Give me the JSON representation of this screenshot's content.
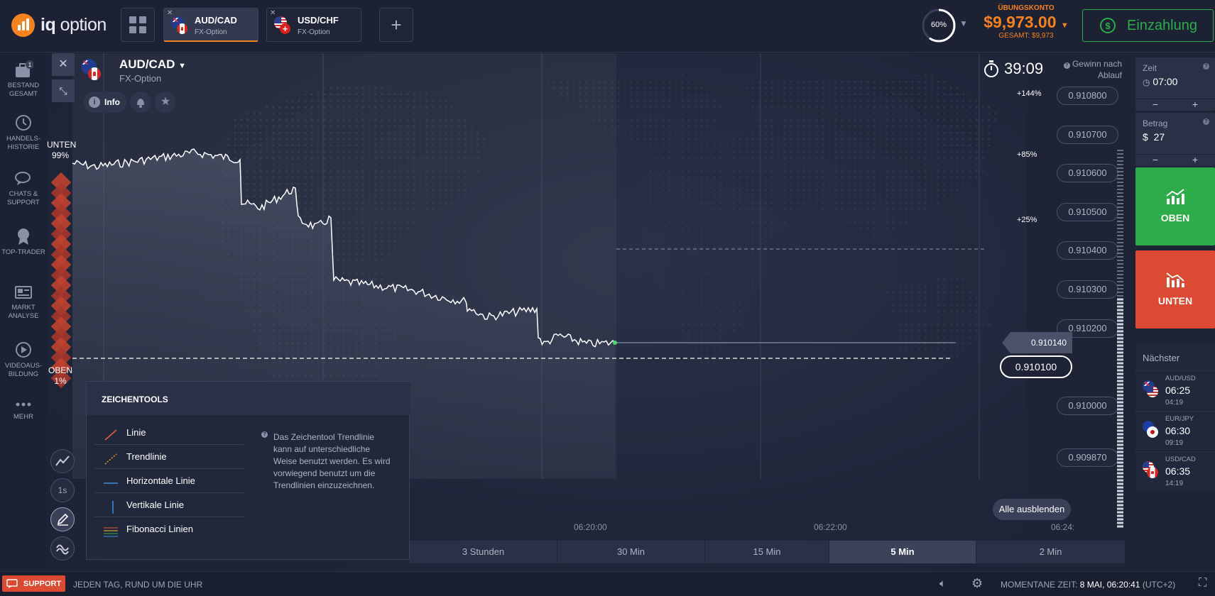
{
  "brand": {
    "name_bold": "iq",
    "name_rest": " option",
    "accent": "#f6811f"
  },
  "tabs": [
    {
      "pair": "AUD/CAD",
      "type": "FX-Option",
      "active": true
    },
    {
      "pair": "USD/CHF",
      "type": "FX-Option",
      "active": false
    }
  ],
  "account": {
    "gauge": "60%",
    "label": "ÜBUNGSKONTO",
    "balance": "$9,973.00",
    "total": "GESAMT: $9,973",
    "deposit": "Einzahlung"
  },
  "sidebar": [
    {
      "label": "BESTAND GESAMT",
      "badge": "1",
      "icon": "briefcase-icon"
    },
    {
      "label": "HANDELS-HISTORIE",
      "icon": "history-icon"
    },
    {
      "label": "CHATS & SUPPORT",
      "icon": "chat-icon"
    },
    {
      "label": "TOP-TRADER",
      "icon": "medal-icon"
    },
    {
      "label": "MARKT ANALYSE",
      "icon": "news-icon"
    },
    {
      "label": "VIDEOAUS-BILDUNG",
      "icon": "play-icon"
    },
    {
      "label": "MEHR",
      "icon": "more-icon"
    }
  ],
  "asset": {
    "pair": "AUD/CAD",
    "type": "FX-Option",
    "info": "Info"
  },
  "timer": {
    "value": "39:09",
    "profit_label": "Gewinn nach Ablauf"
  },
  "sentiment": {
    "down_label": "UNTEN",
    "down_pct": "99%",
    "up_label": "OBEN",
    "up_pct": "1%"
  },
  "price_axis": [
    "0.910800",
    "0.910700",
    "0.910600",
    "0.910500",
    "0.910400",
    "0.910300",
    "0.910200",
    "0.910000",
    "0.909870"
  ],
  "current_price": "0.910140",
  "strike_price": "0.910100",
  "payout_levels": [
    "+144%",
    "+85%",
    "+25%"
  ],
  "time_axis": [
    "06:20:00",
    "06:22:00",
    "06:24:"
  ],
  "hide_all": "Alle ausblenden",
  "timeframes": [
    {
      "label": "3 Stunden"
    },
    {
      "label": "30 Min"
    },
    {
      "label": "15 Min"
    },
    {
      "label": "5 Min",
      "active": true
    },
    {
      "label": "2 Min"
    }
  ],
  "chart_buttons": {
    "interval": "1s"
  },
  "drawing_tools": {
    "title": "ZEICHENTOOLS",
    "items": [
      "Linie",
      "Trendlinie",
      "Horizontale Linie",
      "Vertikale Linie",
      "Fibonacci Linien"
    ],
    "description": "Das Zeichentool Trendlinie kann auf unterschiedliche Weise benutzt werden. Es wird vorwiegend benutzt um die Trendlinien einzuzeichnen."
  },
  "trade_panel": {
    "time_label": "Zeit",
    "time_value": "07:00",
    "amount_label": "Betrag",
    "currency": "$",
    "amount_value": "27",
    "minus": "−",
    "plus": "+",
    "up_label": "OBEN",
    "down_label": "UNTEN",
    "up_color": "#2dad4a",
    "down_color": "#dd4a33"
  },
  "next_expiries": {
    "title": "Nächster",
    "items": [
      {
        "pair": "AUD/USD",
        "time": "06:25",
        "countdown": "04:19"
      },
      {
        "pair": "EUR/JPY",
        "time": "06:30",
        "countdown": "09:19"
      },
      {
        "pair": "USD/CAD",
        "time": "06:35",
        "countdown": "14:19"
      }
    ]
  },
  "footer": {
    "support": "SUPPORT",
    "tagline": "JEDEN TAG, RUND UM DIE UHR",
    "time_label": "MOMENTANE ZEIT:",
    "time_value": "8 MAI, 06:20:41",
    "tz": "(UTC+2)"
  }
}
